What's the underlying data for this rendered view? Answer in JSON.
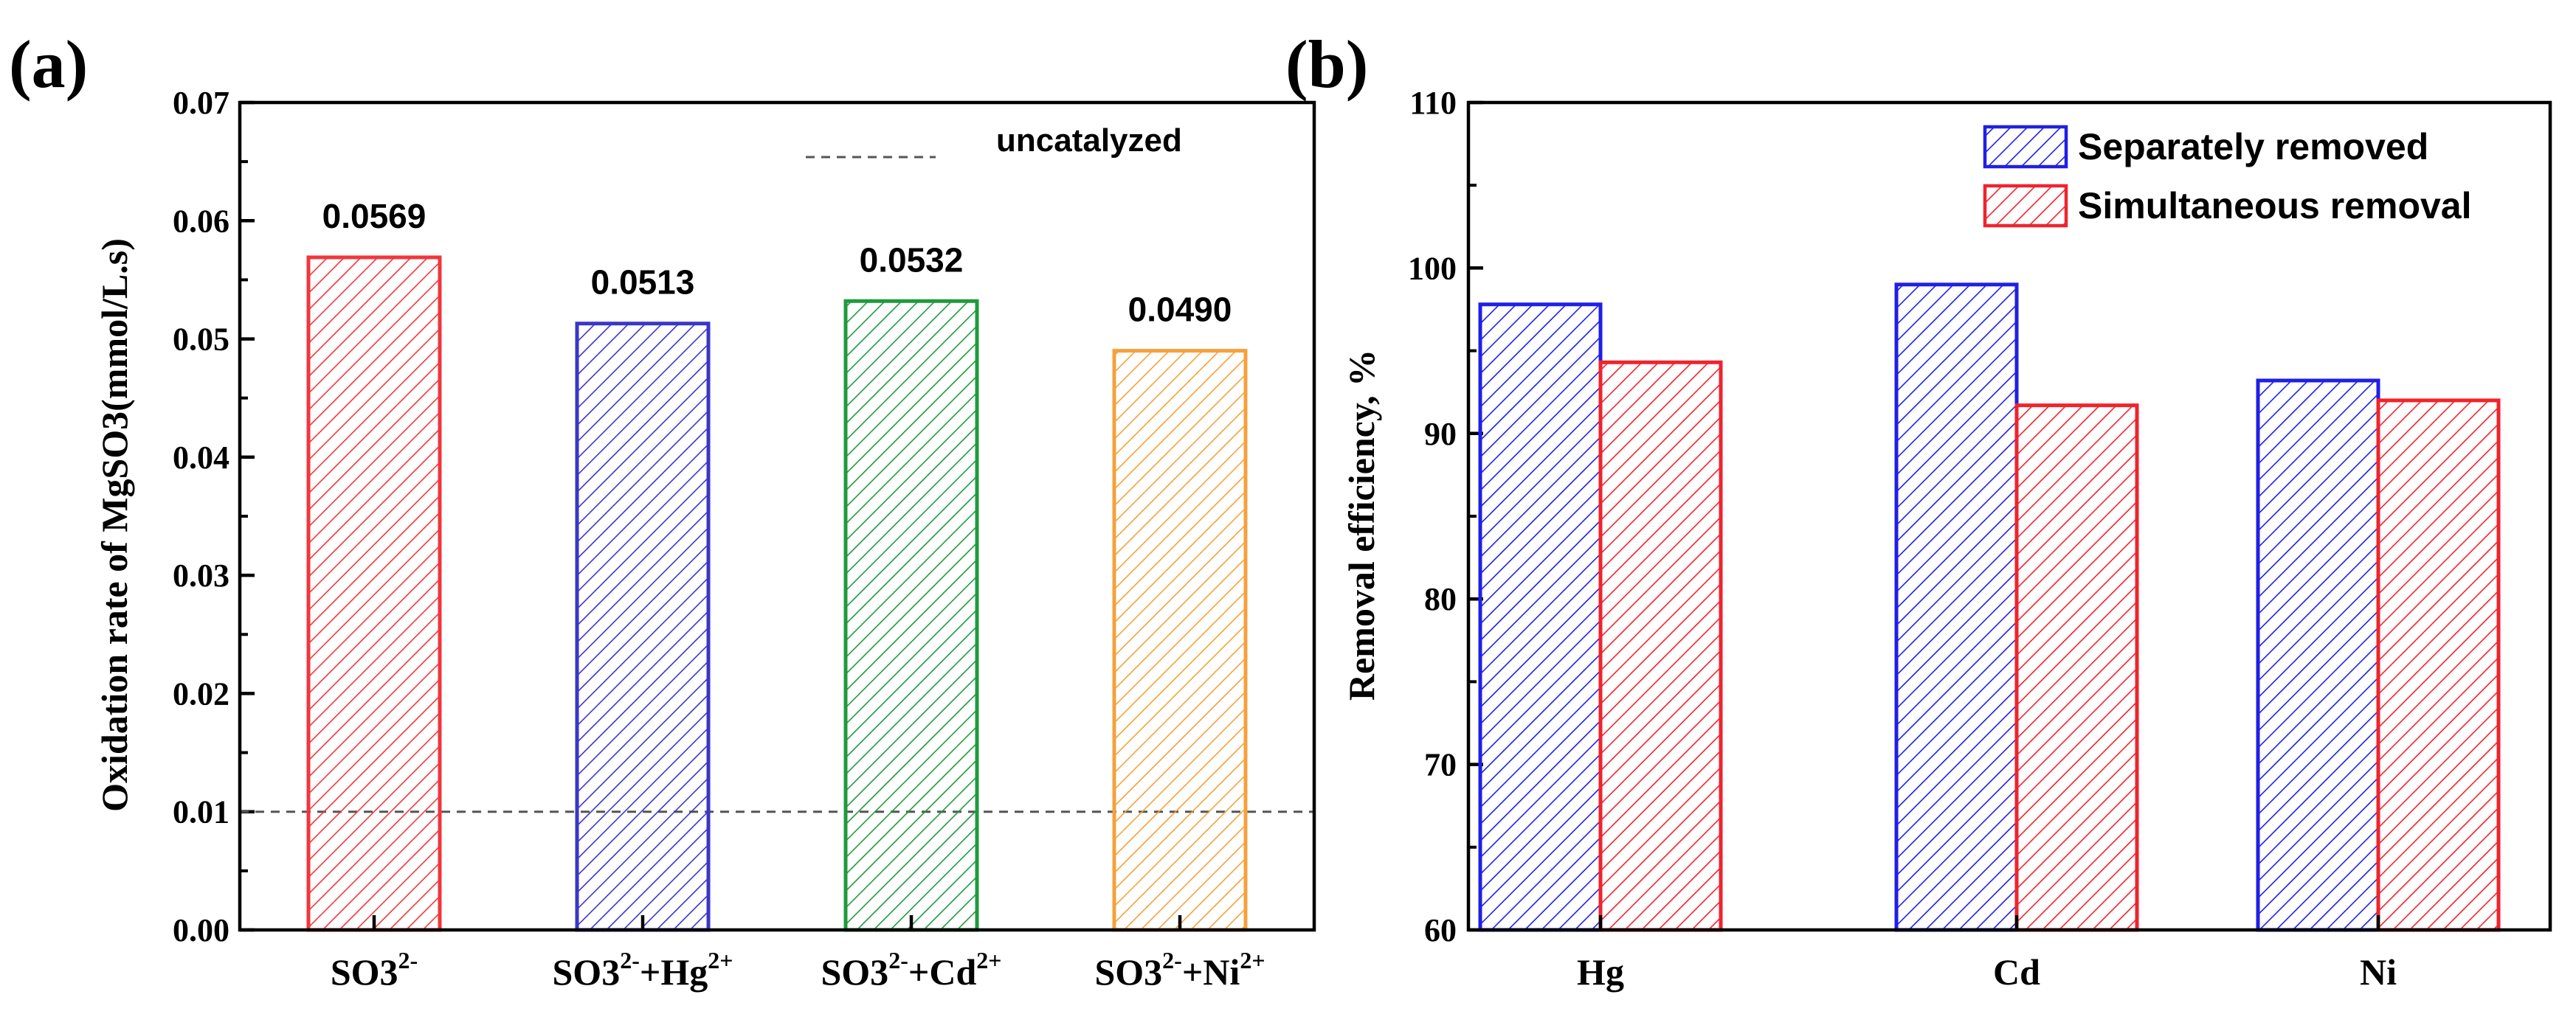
{
  "chart_data": [
    {
      "panel": "(a)",
      "type": "bar",
      "title": "",
      "xlabel": "",
      "ylabel": "Oxidation rate of MgSO3(mmol/L.s)",
      "ylim": [
        0,
        0.07
      ],
      "yticks": [
        "0.00",
        "0.01",
        "0.02",
        "0.03",
        "0.04",
        "0.05",
        "0.06",
        "0.07"
      ],
      "categories": [
        {
          "base": "SO3",
          "sup": "2-",
          "rest": []
        },
        {
          "base": "SO3",
          "sup": "2-",
          "rest": [
            {
              "text": "+Hg",
              "sup": "2+"
            }
          ]
        },
        {
          "base": "SO3",
          "sup": "2-",
          "rest": [
            {
              "text": "+Cd",
              "sup": "2+"
            }
          ]
        },
        {
          "base": "SO3",
          "sup": "2-",
          "rest": [
            {
              "text": "+Ni",
              "sup": "2+"
            }
          ]
        }
      ],
      "values": [
        0.0569,
        0.0513,
        0.0532,
        0.049
      ],
      "value_labels": [
        "0.0569",
        "0.0513",
        "0.0532",
        "0.0490"
      ],
      "bar_colors": [
        "#f0373c",
        "#3a36c8",
        "#1f9a3c",
        "#f5a13c"
      ],
      "reference_line": {
        "value": 0.01,
        "label": "uncatalyzed",
        "style": "dashed",
        "color": "#555555"
      },
      "grid": false
    },
    {
      "panel": "(b)",
      "type": "bar",
      "title": "",
      "xlabel": "",
      "ylabel": "Removal efficiency, %",
      "ylim": [
        60,
        110
      ],
      "yticks": [
        "60",
        "70",
        "80",
        "90",
        "100",
        "110"
      ],
      "categories": [
        "Hg",
        "Cd",
        "Ni"
      ],
      "series": [
        {
          "name": "Separately removed",
          "color": "#1f1fe6",
          "values": [
            97.8,
            99.0,
            93.2
          ]
        },
        {
          "name": "Simultaneous removal",
          "color": "#f0232d",
          "values": [
            94.3,
            91.7,
            92.0
          ]
        }
      ],
      "legend_position": "top-right",
      "grid": false
    }
  ]
}
